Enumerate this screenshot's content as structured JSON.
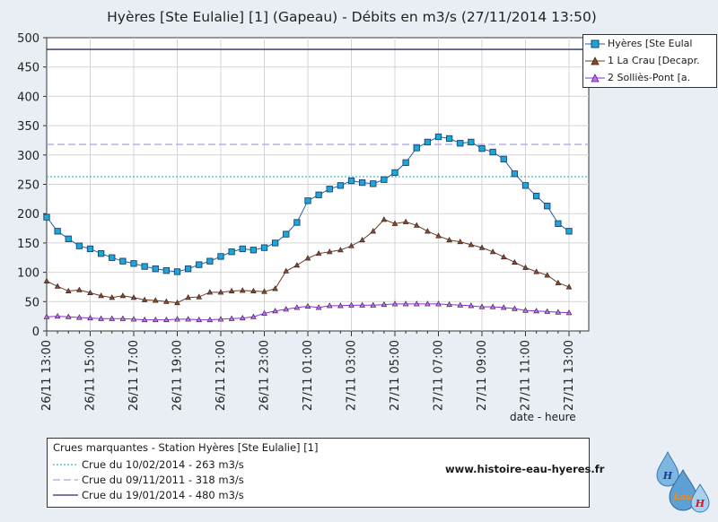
{
  "chart_data": {
    "type": "line",
    "title": "Hyères [Ste Eulalie] [1] (Gapeau) - Débits en m3/s (27/11/2014 13:50)",
    "xlabel": "date - heure",
    "ylabel": "",
    "ylim": [
      0,
      500
    ],
    "yticks": [
      "0",
      "50",
      "100",
      "150",
      "200",
      "250",
      "300",
      "350",
      "400",
      "450",
      "500"
    ],
    "xtick_labels": [
      "26/11 13:00",
      "26/11 15:00",
      "26/11 17:00",
      "26/11 19:00",
      "26/11 21:00",
      "26/11 23:00",
      "27/11 01:00",
      "27/11 03:00",
      "27/11 05:00",
      "27/11 07:00",
      "27/11 09:00",
      "27/11 11:00",
      "27/11 13:00"
    ],
    "x_start": "26/11 13:00",
    "x_step_minutes": 30,
    "grid": true,
    "legend_position": "top-right",
    "series": [
      {
        "name": "Hyères [Ste Eulal",
        "color": "#1f5ea8",
        "marker": "square",
        "values": [
          194,
          170,
          157,
          145,
          140,
          132,
          125,
          119,
          115,
          110,
          106,
          103,
          101,
          106,
          113,
          119,
          127,
          135,
          140,
          138,
          142,
          150,
          165,
          185,
          222,
          232,
          242,
          248,
          256,
          253,
          251,
          258,
          270,
          287,
          312,
          322,
          331,
          328,
          320,
          322,
          311,
          305,
          293,
          268,
          248,
          230,
          213,
          183,
          170
        ]
      },
      {
        "name": "1 La Crau [Decapr.",
        "color": "#6b3a1e",
        "marker": "triangle",
        "values": [
          85,
          76,
          68,
          70,
          65,
          60,
          57,
          60,
          57,
          53,
          52,
          50,
          48,
          57,
          58,
          66,
          66,
          68,
          69,
          68,
          67,
          72,
          102,
          112,
          124,
          132,
          135,
          138,
          145,
          155,
          170,
          190,
          183,
          186,
          180,
          170,
          162,
          155,
          152,
          147,
          142,
          135,
          126,
          117,
          108,
          101,
          95,
          82,
          75
        ]
      },
      {
        "name": "2 Solliès-Pont [a.",
        "color": "#8a2be2",
        "marker": "triangle",
        "values": [
          24,
          25,
          24,
          23,
          22,
          21,
          21,
          21,
          20,
          19,
          19,
          19,
          20,
          20,
          19,
          19,
          20,
          21,
          22,
          24,
          30,
          34,
          37,
          40,
          42,
          40,
          43,
          43,
          44,
          44,
          44,
          45,
          46,
          46,
          46,
          46,
          46,
          45,
          44,
          43,
          41,
          41,
          40,
          38,
          35,
          34,
          33,
          32,
          31
        ]
      }
    ]
  },
  "reference_lines": [
    {
      "value": 263,
      "color": "#3cb9c9",
      "style": "dotted"
    },
    {
      "value": 318,
      "color": "#a7a2e8",
      "style": "dashed"
    },
    {
      "value": 480,
      "color": "#2a2a6e",
      "style": "solid"
    }
  ],
  "crues_box": {
    "title": "Crues marquantes - Station Hyères [Ste Eulalie] [1]",
    "items": [
      {
        "label": "Crue du 10/02/2014 - 263 m3/s",
        "color": "#3cb9c9",
        "style": "dotted"
      },
      {
        "label": "Crue du 09/11/2011 - 318 m3/s",
        "color": "#a7a2e8",
        "style": "dashed"
      },
      {
        "label": "Crue du 19/01/2014 - 480 m3/s",
        "color": "#2a2a6e",
        "style": "solid"
      }
    ]
  },
  "site_url": "www.histoire-eau-hyeres.fr",
  "logo_text": "HEauH"
}
